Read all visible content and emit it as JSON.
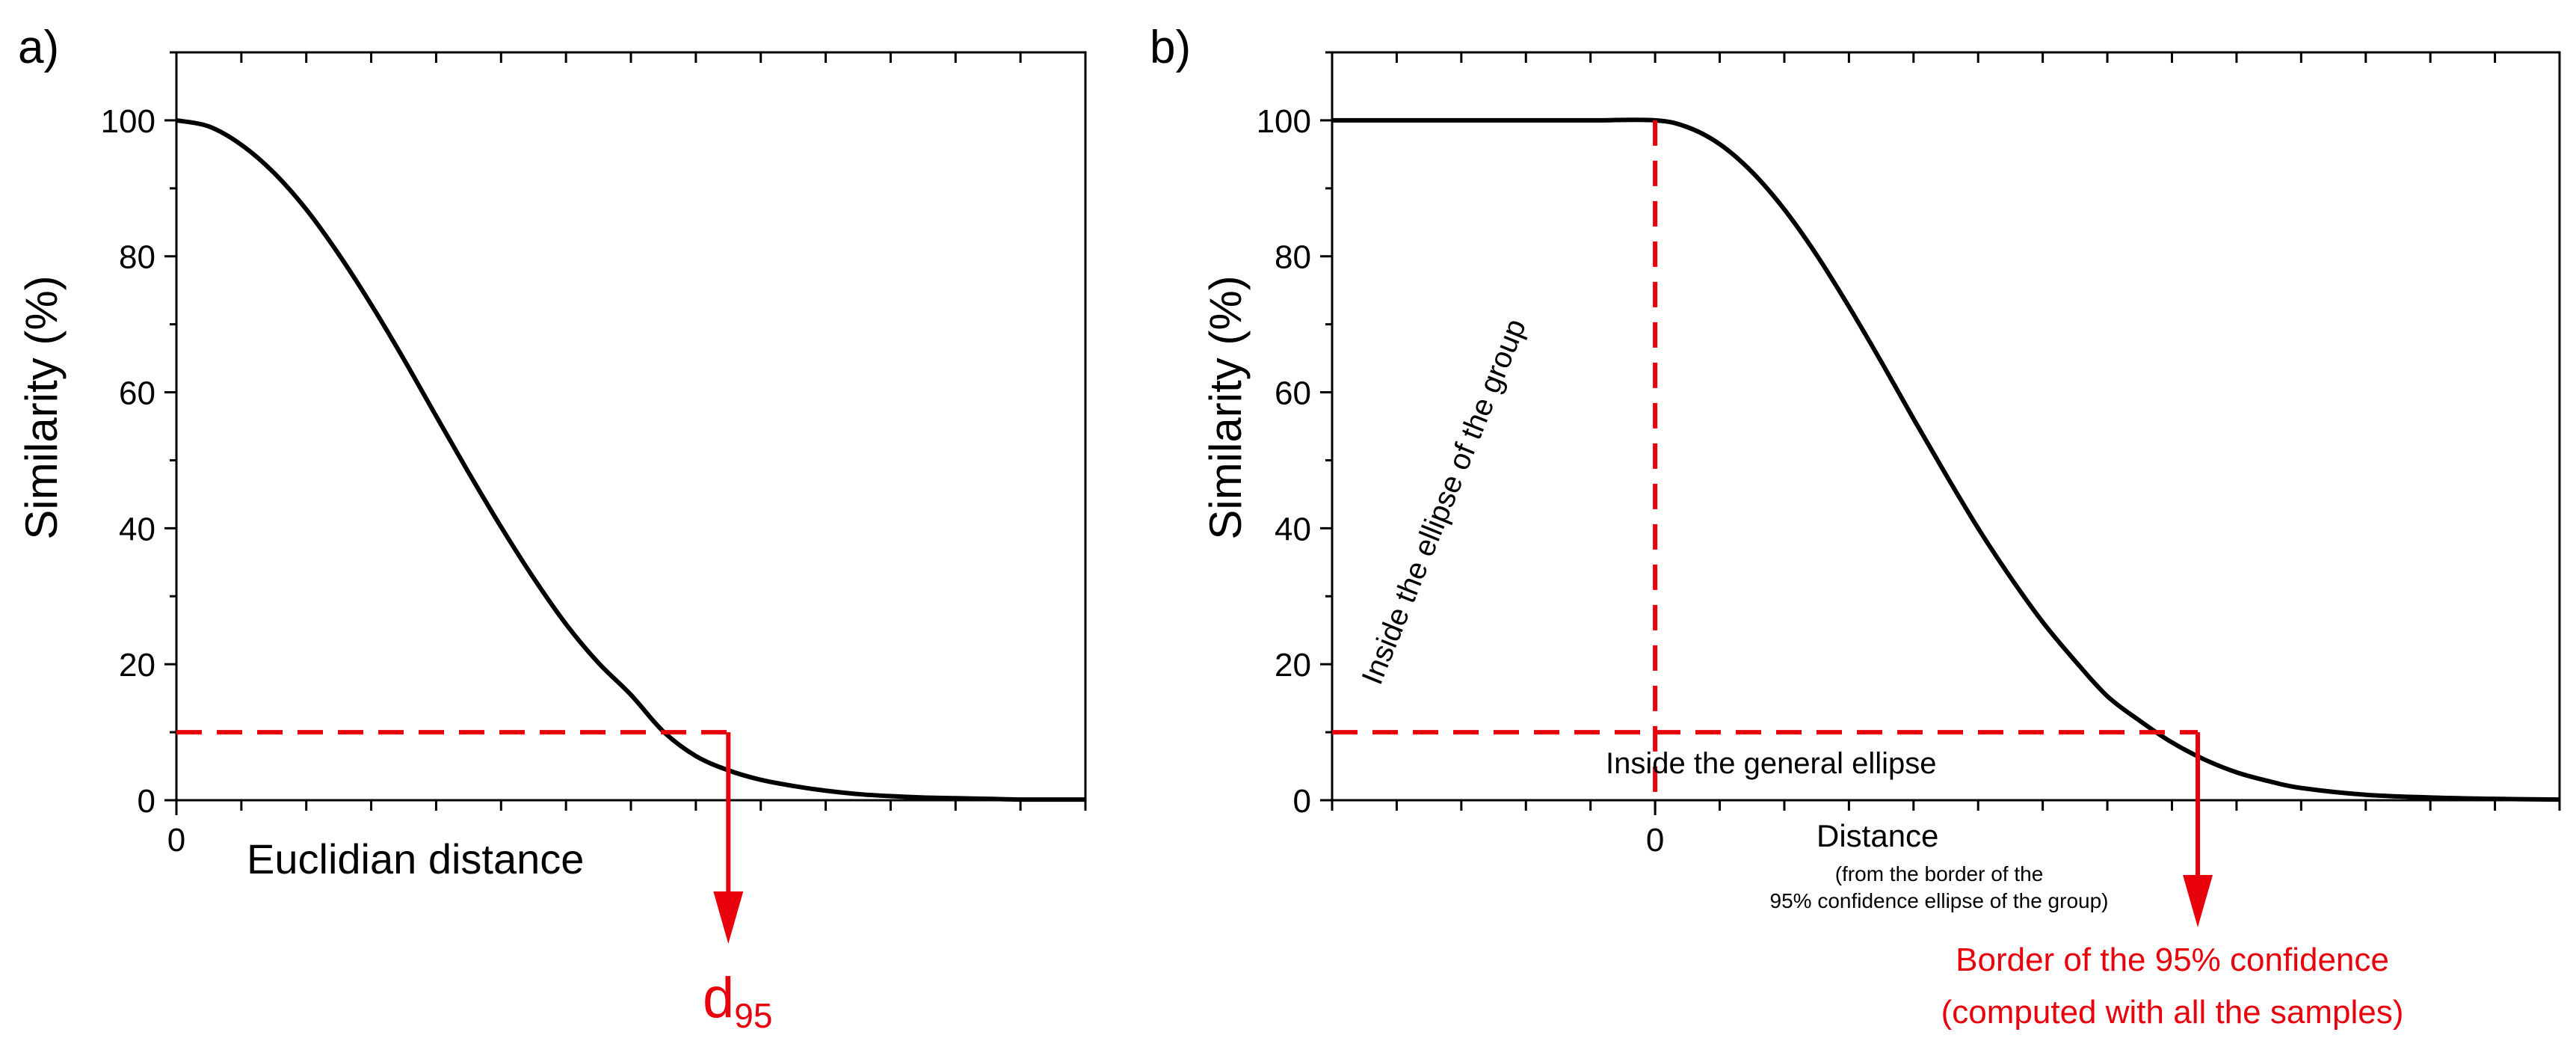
{
  "colors": {
    "axis": "#000000",
    "curve": "#000000",
    "marker": "#e8000b",
    "background": "#ffffff"
  },
  "chart_data": [
    {
      "type": "line",
      "panel_label": "a)",
      "ylabel": "Similarity (%)",
      "xlabel": "Euclidian distance",
      "xlabel_note": [],
      "ylim": [
        0,
        110
      ],
      "xlim": [
        0,
        14
      ],
      "yticks": [
        0,
        20,
        40,
        60,
        80,
        100
      ],
      "ytick_labels": [
        "0",
        "20",
        "40",
        "60",
        "80",
        "100"
      ],
      "xticks": [
        0
      ],
      "xtick_labels": [
        "0"
      ],
      "x_minor_step": 1,
      "series": [
        {
          "name": "similarity",
          "x": [
            0,
            0.5,
            1,
            1.5,
            2,
            2.5,
            3,
            3.5,
            4,
            4.5,
            5,
            5.5,
            6,
            6.5,
            7,
            7.5,
            8,
            8.5,
            9,
            9.5,
            10,
            10.5,
            11,
            11.5,
            12,
            12.5,
            13,
            13.5,
            14
          ],
          "y": [
            100,
            99.1,
            96.4,
            92.3,
            86.9,
            80.3,
            72.9,
            64.9,
            56.5,
            48.2,
            40.2,
            32.7,
            25.9,
            20.2,
            15.5,
            10.1,
            6.5,
            4.4,
            3.0,
            2.1,
            1.4,
            0.9,
            0.6,
            0.4,
            0.3,
            0.2,
            0.1,
            0.1,
            0.1
          ]
        }
      ],
      "threshold": {
        "x": 8.5,
        "y": 10,
        "dashed_from_x": 0
      },
      "arrow_label": {
        "main": "d",
        "subscript": "95"
      }
    },
    {
      "type": "line",
      "panel_label": "b)",
      "ylabel": "Similarity (%)",
      "xlabel": "Distance",
      "xlabel_note": [
        "(from the border of the",
        "95% confidence ellipse of the group)"
      ],
      "ylim": [
        0,
        110
      ],
      "xlim": [
        -5,
        14
      ],
      "yticks": [
        0,
        20,
        40,
        60,
        80,
        100
      ],
      "ytick_labels": [
        "0",
        "20",
        "40",
        "60",
        "80",
        "100"
      ],
      "xticks": [
        0
      ],
      "xtick_labels": [
        "0"
      ],
      "x_minor_step": 1,
      "series": [
        {
          "name": "similarity",
          "x": [
            -5,
            -4,
            -3,
            -2,
            -1,
            0,
            0.5,
            1,
            1.5,
            2,
            2.5,
            3,
            3.5,
            4,
            4.5,
            5,
            5.5,
            6,
            6.5,
            7,
            7.5,
            8,
            8.5,
            9,
            9.5,
            10,
            11,
            12,
            13,
            14
          ],
          "y": [
            100,
            100,
            100,
            100,
            100,
            100,
            99.0,
            96.5,
            92.4,
            86.9,
            80.2,
            72.6,
            64.5,
            56.1,
            47.9,
            40.0,
            32.8,
            26.2,
            20.5,
            15.3,
            11.7,
            8.5,
            6.0,
            4.1,
            2.8,
            1.8,
            0.8,
            0.4,
            0.2,
            0.1
          ]
        }
      ],
      "threshold": {
        "x": 8.4,
        "y": 10,
        "dashed_from_x": -5
      },
      "vertical_dashed": {
        "x": 0,
        "y_top": 100
      },
      "annotations": {
        "inside_group": "Inside the ellipse of the group",
        "inside_general": "Inside the general ellipse"
      },
      "arrow_label": {
        "lines": [
          "Border of the 95% confidence",
          "(computed with all the samples)"
        ]
      }
    }
  ]
}
